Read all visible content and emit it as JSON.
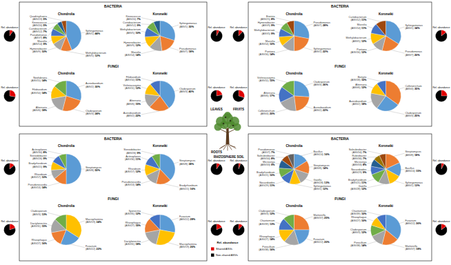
{
  "panels": [
    {
      "organ": "LEAVES",
      "kingdoms": [
        "BACTERIA",
        "FUNGI"
      ]
    },
    {
      "organ": "FRUITS",
      "kingdoms": [
        "BACTERIA",
        "FUNGI"
      ]
    },
    {
      "organ": "ROOTS",
      "kingdoms": [
        "BACTERIA",
        "FUNGI"
      ]
    },
    {
      "organ": "RHIZOSPHERE SOIL",
      "kingdoms": [
        "BACTERIA",
        "FUNGI"
      ]
    }
  ],
  "legend_box": {
    "title": "Rel. abundance",
    "entries": [
      {
        "name": "Shared ASVs",
        "color": "#e00000"
      },
      {
        "name": "Non-shared ASVs",
        "color": "#000000"
      }
    ]
  },
  "chart_data": [
    {
      "type": "pie",
      "title": "Chondrolia",
      "data_labels": true,
      "categories": [
        "Sphingomonas (ASV1)",
        "Methylobacterium (ASV5)",
        "Hymenobacter (ASV9)",
        "Massilia (ASV14)",
        "Pseudomonas (ASV7)",
        "Curtobacterium (ASV12)",
        "Kineococcus (ASV20)",
        "Quadrisphaera (ASV23)"
      ],
      "values": [
        44,
        12,
        10,
        9,
        8,
        7,
        5,
        5
      ],
      "value_labels": [
        "44%",
        "12%",
        "10%",
        "9%",
        "8%",
        "7%",
        "5%",
        "5%"
      ],
      "colors": [
        "#5b9bd5",
        "#ed7d31",
        "#a5a5a5",
        "#ffc000",
        "#4472c4",
        "#70ad47",
        "#255e91",
        "#9e480e"
      ]
    },
    {
      "type": "pie",
      "title": "Koroneiki",
      "data_labels": true,
      "categories": [
        "Sphingomonas (ASV1)",
        "Pseudomonas (ASV7)",
        "Massilia (ASV14)",
        "Hymenobacter (ASV9)",
        "Methylobacterium (ASV5)",
        "Curtobacterium (ASV12)",
        "Kineococcus (ASV20)"
      ],
      "values": [
        30,
        18,
        14,
        12,
        10,
        9,
        7
      ],
      "value_labels": [
        "30%",
        "18%",
        "14%",
        "12%",
        "10%",
        "9%",
        "7%"
      ],
      "colors": [
        "#5b9bd5",
        "#ed7d31",
        "#a5a5a5",
        "#ffc000",
        "#4472c4",
        "#70ad47",
        "#255e91"
      ]
    },
    {
      "type": "pie",
      "title": "Chondrolia",
      "data_labels": true,
      "categories": [
        "Aureobasidium (ASV2)",
        "Cladosporium (ASV3)",
        "Alternaria (ASV6)",
        "Filobasidium (ASV10)",
        "Neofabraea (ASV15)"
      ],
      "values": [
        30,
        24,
        18,
        14,
        14
      ],
      "value_labels": [
        "30%",
        "24%",
        "18%",
        "14%",
        "14%"
      ],
      "colors": [
        "#5b9bd5",
        "#ed7d31",
        "#a5a5a5",
        "#ffc000",
        "#70ad47"
      ]
    },
    {
      "type": "pie",
      "title": "Koroneiki",
      "data_labels": true,
      "categories": [
        "Cladosporium (ASV3)",
        "Aureobasidium (ASV2)",
        "Alternaria (ASV6)",
        "Vishniacozyma (ASV11)",
        "Filobasidium (ASV10)"
      ],
      "values": [
        40,
        22,
        15,
        12,
        11
      ],
      "value_labels": [
        "40%",
        "22%",
        "15%",
        "12%",
        "11%"
      ],
      "colors": [
        "#5b9bd5",
        "#ed7d31",
        "#a5a5a5",
        "#ffc000",
        "#4472c4"
      ]
    },
    {
      "type": "pie",
      "title": "Chondrolia",
      "data_labels": true,
      "categories": [
        "Pseudomonas (ASV7)",
        "Sphingomonas (ASV1)",
        "Pantoea (ASV16)",
        "Massilia (ASV14)",
        "Methylobacterium (ASV5)",
        "Hymenobacter (ASV9)",
        "Erwinia (ASV25)"
      ],
      "values": [
        28,
        22,
        14,
        10,
        9,
        9,
        8
      ],
      "value_labels": [
        "28%",
        "22%",
        "14%",
        "10%",
        "9%",
        "9%",
        "8%"
      ],
      "colors": [
        "#5b9bd5",
        "#ed7d31",
        "#a5a5a5",
        "#ffc000",
        "#4472c4",
        "#70ad47",
        "#9e480e"
      ]
    },
    {
      "type": "pie",
      "title": "Koroneiki",
      "data_labels": true,
      "categories": [
        "Sphingomonas (ASV1)",
        "Pseudomonas (ASV7)",
        "Pantoea (ASV16)",
        "Methylobacterium (ASV5)",
        "Massilia (ASV14)",
        "Curtobacterium (ASV12)"
      ],
      "values": [
        34,
        20,
        12,
        12,
        11,
        11
      ],
      "value_labels": [
        "34%",
        "20%",
        "12%",
        "12%",
        "11%",
        "11%"
      ],
      "colors": [
        "#5b9bd5",
        "#ed7d31",
        "#a5a5a5",
        "#ffc000",
        "#4472c4",
        "#9e480e"
      ]
    },
    {
      "type": "pie",
      "title": "Chondrolia",
      "data_labels": true,
      "categories": [
        "Cladosporium (ASV3)",
        "Aureobasidium (ASV2)",
        "Colletotrichum (ASV4)",
        "Alternaria (ASV6)",
        "Vishniacozyma (ASV11)"
      ],
      "values": [
        26,
        22,
        20,
        17,
        15
      ],
      "value_labels": [
        "26%",
        "22%",
        "20%",
        "17%",
        "15%"
      ],
      "colors": [
        "#5b9bd5",
        "#ed7d31",
        "#a5a5a5",
        "#4472c4",
        "#70ad47"
      ]
    },
    {
      "type": "pie",
      "title": "Koroneiki",
      "data_labels": true,
      "categories": [
        "Colletotrichum (ASV4)",
        "Cladosporium (ASV3)",
        "Aureobasidium (ASV2)",
        "Alternaria (ASV6)",
        "Botrytis (ASV18)"
      ],
      "values": [
        35,
        25,
        18,
        12,
        10
      ],
      "value_labels": [
        "35%",
        "25%",
        "18%",
        "12%",
        "10%"
      ],
      "colors": [
        "#ed7d31",
        "#5b9bd5",
        "#a5a5a5",
        "#ffc000",
        "#4472c4"
      ]
    },
    {
      "type": "pie",
      "title": "Chondrolia",
      "data_labels": true,
      "categories": [
        "Streptomyces (ASV8)",
        "Pseudonocardia (ASV13)",
        "Rhizobium (ASV17)",
        "Bradyrhizobium (ASV21)",
        "Steroidobacter (ASV26)",
        "Actinoplanes (ASV30)"
      ],
      "values": [
        50,
        14,
        10,
        9,
        9,
        8
      ],
      "value_labels": [
        "50%",
        "14%",
        "10%",
        "9%",
        "9%",
        "8%"
      ],
      "colors": [
        "#5b9bd5",
        "#ed7d31",
        "#a5a5a5",
        "#ffc000",
        "#4472c4",
        "#70ad47"
      ]
    },
    {
      "type": "pie",
      "title": "Koroneiki",
      "data_labels": true,
      "categories": [
        "Streptomyces (ASV8)",
        "Bradyrhizobium (ASV21)",
        "Pseudonocardia (ASV13)",
        "Rhizobium (ASV17)",
        "Actinoplanes (ASV30)",
        "Steroidobacter (ASV26)"
      ],
      "values": [
        38,
        16,
        14,
        12,
        11,
        9
      ],
      "value_labels": [
        "38%",
        "16%",
        "14%",
        "12%",
        "11%",
        "9%"
      ],
      "colors": [
        "#5b9bd5",
        "#ed7d31",
        "#a5a5a5",
        "#ffc000",
        "#4472c4",
        "#70ad47"
      ]
    },
    {
      "type": "pie",
      "title": "Chondrolia",
      "data_labels": true,
      "categories": [
        "Macrophomina (ASV19)",
        "Fusarium (ASV22)",
        "Rhizophagus (ASV27)",
        "Dactylonectria (ASV31)",
        "Cladosporium (ASV3)"
      ],
      "values": [
        34,
        22,
        16,
        15,
        13
      ],
      "value_labels": [
        "34%",
        "22%",
        "16%",
        "15%",
        "13%"
      ],
      "colors": [
        "#ffc000",
        "#5b9bd5",
        "#ed7d31",
        "#a5a5a5",
        "#70ad47"
      ]
    },
    {
      "type": "pie",
      "title": "Koroneiki",
      "data_labels": true,
      "categories": [
        "Fusarium (ASV22)",
        "Macrophomina (ASV19)",
        "Dactylonectria (ASV31)",
        "Rhizophagus (ASV27)",
        "Ilyonectria (ASV35)"
      ],
      "values": [
        28,
        26,
        18,
        16,
        12
      ],
      "value_labels": [
        "28%",
        "26%",
        "18%",
        "16%",
        "12%"
      ],
      "colors": [
        "#5b9bd5",
        "#ffc000",
        "#a5a5a5",
        "#ed7d31",
        "#4472c4"
      ]
    },
    {
      "type": "pie",
      "title": "Chondrolia",
      "data_labels": true,
      "categories": [
        "Bacillus (ASV24)",
        "Streptomyces (ASV8)",
        "Gaiella (ASV28)",
        "Sphingomonas (ASV1)",
        "Nocardioides (ASV29)",
        "Bradyrhizobium (ASV21)",
        "Microvirga (ASV33)",
        "Solirubrobacter (ASV34)",
        "Pseudomonas (ASV7)"
      ],
      "values": [
        16,
        14,
        13,
        12,
        11,
        10,
        9,
        8,
        7
      ],
      "value_labels": [
        "16%",
        "14%",
        "13%",
        "12%",
        "11%",
        "10%",
        "9%",
        "8%",
        "7%"
      ],
      "colors": [
        "#5b9bd5",
        "#ed7d31",
        "#a5a5a5",
        "#ffc000",
        "#4472c4",
        "#70ad47",
        "#255e91",
        "#9e480e",
        "#636363"
      ]
    },
    {
      "type": "pie",
      "title": "Koroneiki",
      "data_labels": true,
      "categories": [
        "Streptomyces (ASV8)",
        "Bacillus (ASV24)",
        "Sphingomonas (ASV1)",
        "Gaiella (ASV28)",
        "Bradyrhizobium (ASV21)",
        "Nocardioides (ASV29)",
        "Microvirga (ASV33)",
        "Rubrobacter (ASV36)",
        "Solirubrobacter (ASV34)"
      ],
      "values": [
        18,
        15,
        13,
        12,
        11,
        9,
        8,
        7,
        7
      ],
      "value_labels": [
        "18%",
        "15%",
        "13%",
        "12%",
        "11%",
        "9%",
        "8%",
        "7%",
        "7%"
      ],
      "colors": [
        "#ed7d31",
        "#5b9bd5",
        "#ffc000",
        "#a5a5a5",
        "#70ad47",
        "#4472c4",
        "#255e91",
        "#997300",
        "#9e480e"
      ]
    },
    {
      "type": "pie",
      "title": "Chondrolia",
      "data_labels": true,
      "categories": [
        "Mortierella (ASV37)",
        "Fusarium (ASV22)",
        "Penicillium (ASV38)",
        "Rhizophagus (ASV27)",
        "Chaetomium (ASV39)",
        "Cladosporium (ASV3)"
      ],
      "values": [
        25,
        20,
        16,
        14,
        13,
        12
      ],
      "value_labels": [
        "25%",
        "20%",
        "16%",
        "14%",
        "13%",
        "12%"
      ],
      "colors": [
        "#ed7d31",
        "#5b9bd5",
        "#a5a5a5",
        "#ffc000",
        "#4472c4",
        "#70ad47"
      ]
    },
    {
      "type": "pie",
      "title": "Koroneiki",
      "data_labels": true,
      "categories": [
        "Fusarium (ASV22)",
        "Mortierella (ASV37)",
        "Penicillium (ASV38)",
        "Cladosporium (ASV3)",
        "Rhizophagus (ASV27)",
        "Chaetomium (ASV39)"
      ],
      "values": [
        36,
        18,
        14,
        12,
        10,
        10
      ],
      "value_labels": [
        "36%",
        "18%",
        "14%",
        "12%",
        "10%",
        "10%"
      ],
      "colors": [
        "#5b9bd5",
        "#ed7d31",
        "#a5a5a5",
        "#70ad47",
        "#ffc000",
        "#4472c4"
      ]
    },
    {
      "type": "pie",
      "title": "Rel. abundance",
      "values": [
        10,
        90
      ],
      "colors": [
        "#e00000",
        "#000000"
      ]
    },
    {
      "type": "pie",
      "title": "Rel. abundance",
      "values": [
        8,
        92
      ],
      "colors": [
        "#e00000",
        "#000000"
      ]
    },
    {
      "type": "pie",
      "title": "Rel. abundance",
      "values": [
        28,
        72
      ],
      "colors": [
        "#e00000",
        "#000000"
      ]
    },
    {
      "type": "pie",
      "title": "Rel. abundance",
      "values": [
        22,
        78
      ],
      "colors": [
        "#e00000",
        "#000000"
      ]
    },
    {
      "type": "pie",
      "title": "Rel. abundance",
      "values": [
        12,
        88
      ],
      "colors": [
        "#e00000",
        "#000000"
      ]
    },
    {
      "type": "pie",
      "title": "Rel. abundance",
      "values": [
        15,
        85
      ],
      "colors": [
        "#e00000",
        "#000000"
      ]
    },
    {
      "type": "pie",
      "title": "Rel. abundance",
      "values": [
        30,
        70
      ],
      "colors": [
        "#e00000",
        "#000000"
      ]
    },
    {
      "type": "pie",
      "title": "Rel. abundance",
      "values": [
        25,
        75
      ],
      "colors": [
        "#e00000",
        "#000000"
      ]
    },
    {
      "type": "pie",
      "title": "Rel. abundance",
      "values": [
        14,
        86
      ],
      "colors": [
        "#e00000",
        "#000000"
      ]
    },
    {
      "type": "pie",
      "title": "Rel. abundance",
      "values": [
        10,
        90
      ],
      "colors": [
        "#e00000",
        "#000000"
      ]
    },
    {
      "type": "pie",
      "title": "Rel. abundance",
      "values": [
        20,
        80
      ],
      "colors": [
        "#e00000",
        "#000000"
      ]
    },
    {
      "type": "pie",
      "title": "Rel. abundance",
      "values": [
        18,
        82
      ],
      "colors": [
        "#e00000",
        "#000000"
      ]
    },
    {
      "type": "pie",
      "title": "Rel. abundance",
      "values": [
        6,
        94
      ],
      "colors": [
        "#e00000",
        "#000000"
      ]
    },
    {
      "type": "pie",
      "title": "Rel. abundance",
      "values": [
        8,
        92
      ],
      "colors": [
        "#e00000",
        "#000000"
      ]
    },
    {
      "type": "pie",
      "title": "Rel. abundance",
      "values": [
        12,
        88
      ],
      "colors": [
        "#e00000",
        "#000000"
      ]
    },
    {
      "type": "pie",
      "title": "Rel. abundance",
      "values": [
        15,
        85
      ],
      "colors": [
        "#e00000",
        "#000000"
      ]
    }
  ]
}
